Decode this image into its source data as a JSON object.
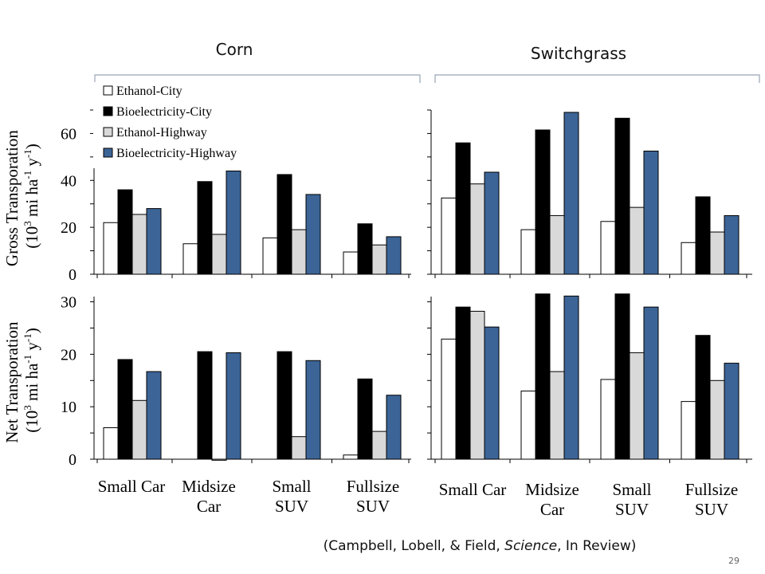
{
  "slide": {
    "column_titles": [
      "Corn",
      "Switchgrass"
    ],
    "citation_parts": [
      "(Campbell, Lobell, & Field, ",
      "Science",
      ", In Review)"
    ],
    "page_number": "29"
  },
  "legend": [
    "Ethanol-City",
    "Bioelectricity-City",
    "Ethanol-Highway",
    "Bioelectricity-Highway"
  ],
  "colors": {
    "Ethanol-City": "#ffffff",
    "Bioelectricity-City": "#000000",
    "Ethanol-Highway": "#d9d9d9",
    "Bioelectricity-Highway": "#3c6496"
  },
  "axis_labels": {
    "top_line1": "Gross Transporation",
    "top_line2_parts": [
      "(10",
      "3",
      " mi ha",
      "-1",
      " y",
      "-1",
      ")"
    ],
    "bottom_line1": "Net Transporation",
    "bottom_line2_parts": [
      "(10",
      "3",
      " mi ha",
      "-1",
      " y",
      "-1",
      ")"
    ]
  },
  "category_labels": [
    [
      "Small Car"
    ],
    [
      "Midsize",
      "Car"
    ],
    [
      "Small",
      "SUV"
    ],
    [
      "Fullsize",
      "SUV"
    ]
  ],
  "chart_data": [
    {
      "type": "bar",
      "crop": "Corn",
      "metric": "Gross Transporation",
      "categories": [
        "Small Car",
        "Midsize Car",
        "Small SUV",
        "Fullsize SUV"
      ],
      "ylim": [
        0,
        70
      ],
      "yticks": [
        0,
        20,
        40,
        60
      ],
      "legend_placement": "top-left",
      "series": [
        {
          "name": "Ethanol-City",
          "values": [
            22,
            13,
            15.5,
            9.5
          ]
        },
        {
          "name": "Bioelectricity-City",
          "values": [
            36,
            39.5,
            42.5,
            21.5
          ]
        },
        {
          "name": "Ethanol-Highway",
          "values": [
            25.5,
            17,
            19,
            12.5
          ]
        },
        {
          "name": "Bioelectricity-Highway",
          "values": [
            28,
            44,
            34,
            16
          ]
        }
      ]
    },
    {
      "type": "bar",
      "crop": "Switchgrass",
      "metric": "Gross Transporation",
      "categories": [
        "Small Car",
        "Midsize Car",
        "Small SUV",
        "Fullsize SUV"
      ],
      "ylim": [
        0,
        70
      ],
      "series": [
        {
          "name": "Ethanol-City",
          "values": [
            32.5,
            19,
            22.5,
            13.5
          ]
        },
        {
          "name": "Bioelectricity-City",
          "values": [
            56,
            61.5,
            66.5,
            33
          ]
        },
        {
          "name": "Ethanol-Highway",
          "values": [
            38.5,
            25,
            28.5,
            18
          ]
        },
        {
          "name": "Bioelectricity-Highway",
          "values": [
            43.5,
            69,
            52.5,
            25
          ]
        }
      ]
    },
    {
      "type": "bar",
      "crop": "Corn",
      "metric": "Net Transporation",
      "categories": [
        "Small Car",
        "Midsize Car",
        "Small SUV",
        "Fullsize SUV"
      ],
      "ylim": [
        0,
        31
      ],
      "yticks": [
        0,
        10,
        20,
        30
      ],
      "series": [
        {
          "name": "Ethanol-City",
          "values": [
            6,
            0,
            0,
            0.8
          ]
        },
        {
          "name": "Bioelectricity-City",
          "values": [
            19,
            20.5,
            20.5,
            15.3
          ]
        },
        {
          "name": "Ethanol-Highway",
          "values": [
            11.2,
            -0.2,
            4.3,
            5.3
          ]
        },
        {
          "name": "Bioelectricity-Highway",
          "values": [
            16.7,
            20.3,
            18.8,
            12.2
          ]
        }
      ]
    },
    {
      "type": "bar",
      "crop": "Switchgrass",
      "metric": "Net Transporation",
      "categories": [
        "Small Car",
        "Midsize Car",
        "Small SUV",
        "Fullsize SUV"
      ],
      "ylim": [
        0,
        31
      ],
      "series": [
        {
          "name": "Ethanol-City",
          "values": [
            22.9,
            13,
            15.2,
            11
          ]
        },
        {
          "name": "Bioelectricity-City",
          "values": [
            29,
            31.5,
            31.5,
            23.6
          ]
        },
        {
          "name": "Ethanol-Highway",
          "values": [
            28.2,
            16.7,
            20.3,
            15
          ]
        },
        {
          "name": "Bioelectricity-Highway",
          "values": [
            25.2,
            31.1,
            29,
            18.3
          ]
        }
      ]
    }
  ]
}
